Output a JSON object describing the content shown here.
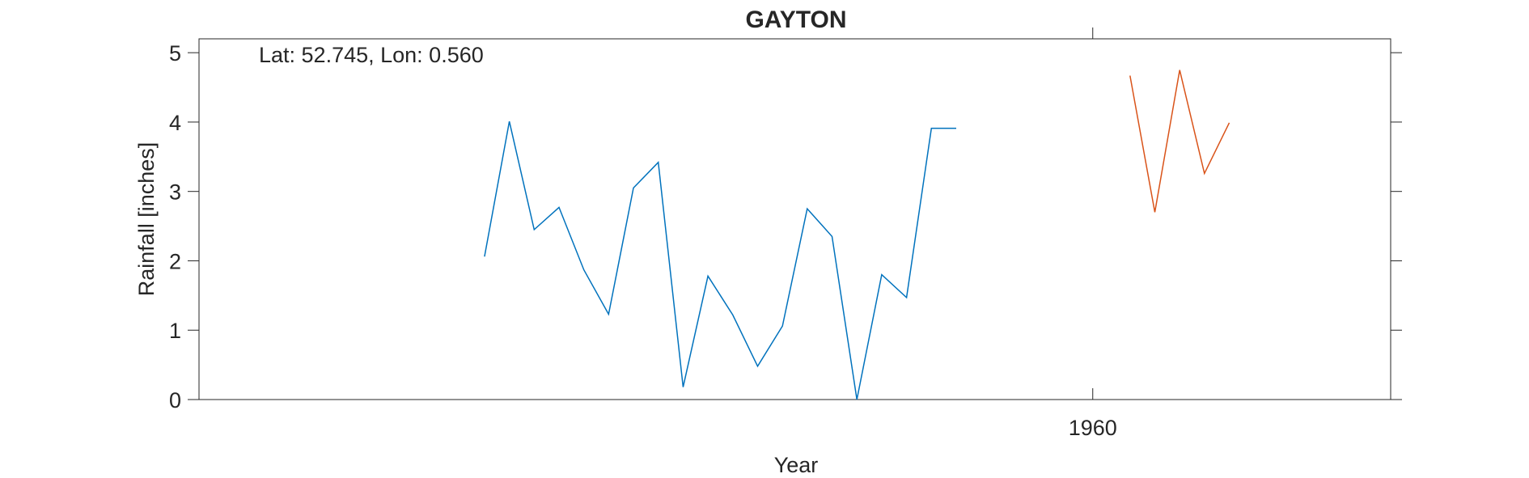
{
  "chart_data": {
    "type": "line",
    "title": "GAYTON",
    "annotation": "Lat: 52.745, Lon: 0.560",
    "xlabel": "Year",
    "ylabel": "Rainfall [inches]",
    "xlim": [
      1924,
      1972
    ],
    "ylim": [
      0,
      5.2
    ],
    "yticks": [
      0,
      1,
      2,
      3,
      4,
      5
    ],
    "xticks": [
      1960
    ],
    "grid": false,
    "series": [
      {
        "color": "#0072BD",
        "x": [
          1935.5,
          1936.5,
          1937.5,
          1938.5,
          1939.5,
          1940.5,
          1941.5,
          1942.5,
          1943.5,
          1944.5,
          1945.5,
          1946.5,
          1947.5,
          1948.5,
          1949.5,
          1950.5,
          1951.5,
          1952.5,
          1953.5,
          1954.5
        ],
        "values": [
          2.06,
          4.01,
          2.45,
          2.77,
          1.87,
          1.23,
          3.05,
          3.42,
          0.18,
          1.78,
          1.22,
          0.48,
          1.06,
          2.75,
          2.35,
          0.0,
          1.8,
          1.47,
          3.91,
          3.91
        ]
      },
      {
        "color": "#D95319",
        "x": [
          1961.5,
          1962.5,
          1963.5,
          1964.5,
          1965.5
        ],
        "values": [
          4.67,
          2.7,
          4.75,
          3.26,
          3.99
        ]
      }
    ]
  }
}
